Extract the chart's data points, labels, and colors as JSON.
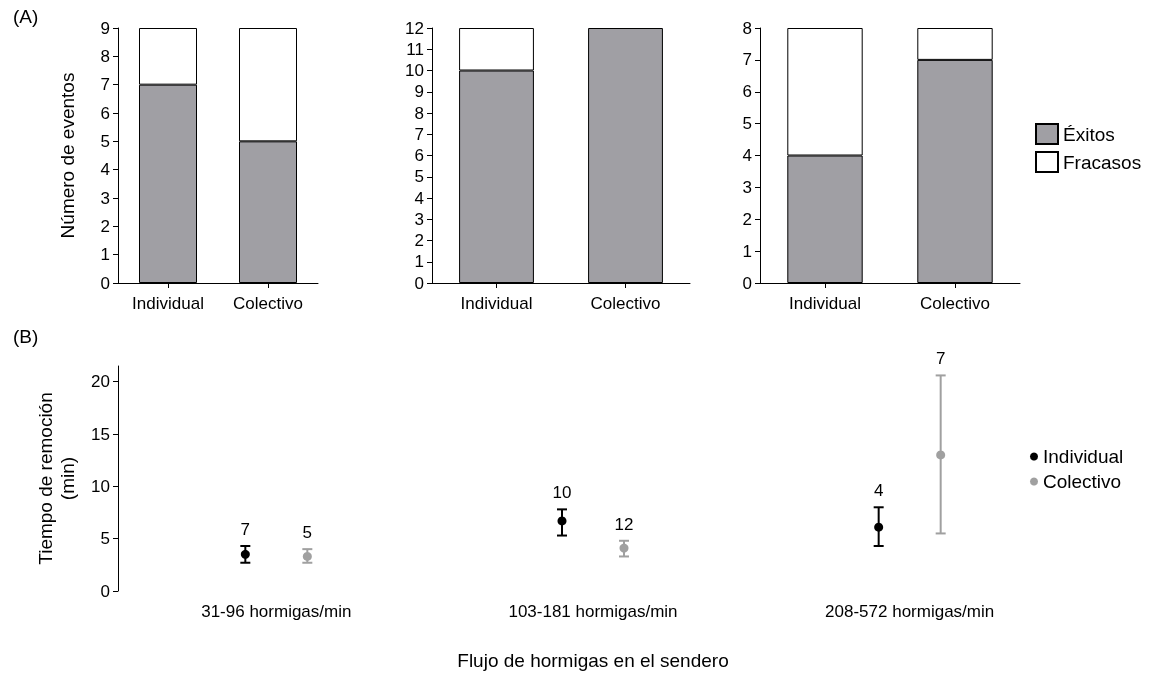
{
  "chart_data": [
    {
      "type": "bar",
      "title": "(A)",
      "ylabel": "Número de eventos",
      "categories": [
        "Individual",
        "Colectivo"
      ],
      "stacked": true,
      "ylim": [
        0,
        9
      ],
      "yticks": [
        0,
        1,
        2,
        3,
        4,
        5,
        6,
        7,
        8,
        9
      ],
      "grid": false,
      "legend": false,
      "series": [
        {
          "color": "#a09fa4",
          "values": [
            7,
            5
          ]
        },
        {
          "color": "#ffffff",
          "values": [
            2,
            4
          ]
        }
      ]
    },
    {
      "type": "bar",
      "categories": [
        "Individual",
        "Colectivo"
      ],
      "stacked": true,
      "ylim": [
        0,
        12
      ],
      "yticks": [
        0,
        1,
        2,
        3,
        4,
        5,
        6,
        7,
        8,
        9,
        10,
        11,
        12
      ],
      "grid": false,
      "legend": false,
      "series": [
        {
          "color": "#a09fa4",
          "values": [
            10,
            12
          ]
        },
        {
          "color": "#ffffff",
          "values": [
            2,
            0
          ]
        }
      ]
    },
    {
      "type": "bar",
      "categories": [
        "Individual",
        "Colectivo"
      ],
      "stacked": true,
      "ylim": [
        0,
        8
      ],
      "yticks": [
        0,
        1,
        2,
        3,
        4,
        5,
        6,
        7,
        8
      ],
      "grid": false,
      "legend": "right",
      "series": [
        {
          "name": "Éxitos",
          "color": "#a09fa4",
          "values": [
            4,
            7
          ]
        },
        {
          "name": "Fracasos",
          "color": "#ffffff",
          "values": [
            4,
            1
          ]
        }
      ]
    },
    {
      "type": "scatter",
      "title": "(B)",
      "ylabel": "Tiempo de remoción\n(min)",
      "xlabel": "Flujo de hormigas en el sendero",
      "categories": [
        "31-96 hormigas/min",
        "103-181 hormigas/min",
        "208-572 hormigas/min"
      ],
      "ylim": [
        0,
        21.5
      ],
      "yticks": [
        0,
        5,
        10,
        15,
        20
      ],
      "grid": false,
      "legend": "right",
      "marker": "circle",
      "series": [
        {
          "name": "Individual",
          "color": "#000000",
          "values": [
            3.5,
            6.7,
            6.1
          ],
          "errors": [
            [
              2.7,
              4.3
            ],
            [
              5.3,
              7.8
            ],
            [
              4.3,
              8.0
            ]
          ]
        },
        {
          "name": "Colectivo",
          "color": "#a0a0a0",
          "values": [
            3.3,
            4.1,
            13.0
          ],
          "errors": [
            [
              2.7,
              4.0
            ],
            [
              3.3,
              4.8
            ],
            [
              5.5,
              20.6
            ]
          ]
        }
      ],
      "annotations": [
        "7",
        "5",
        "10",
        "12",
        "4",
        "7"
      ]
    }
  ]
}
